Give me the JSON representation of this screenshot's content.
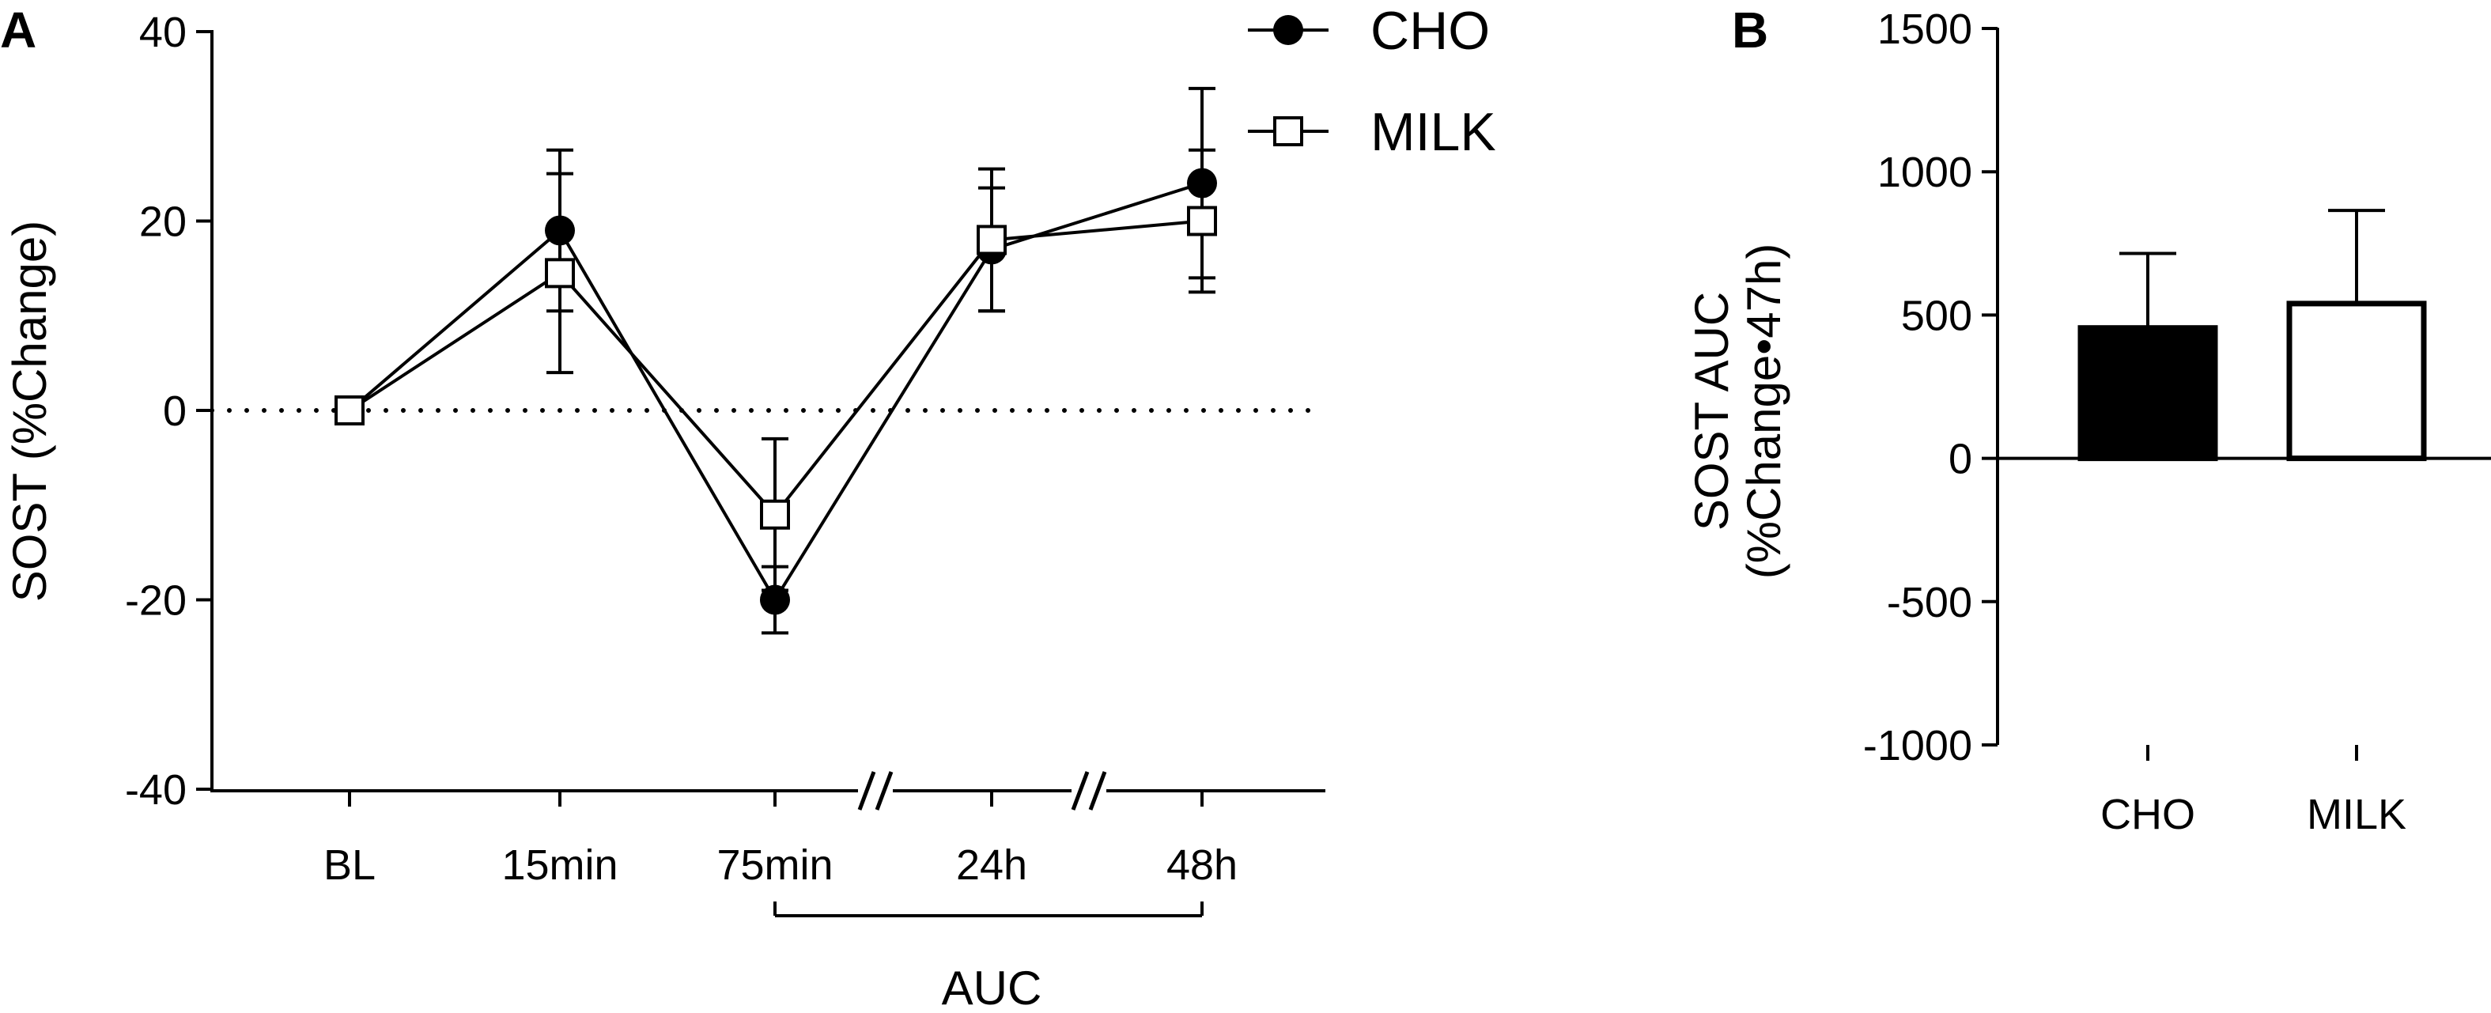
{
  "panels": {
    "a_label": "A",
    "b_label": "B"
  },
  "chart_data": [
    {
      "type": "line",
      "panel": "A",
      "ylabel": "SOST (%Change)",
      "xlabel": "",
      "ylim": [
        -40,
        40
      ],
      "yticks": [
        -40,
        -20,
        0,
        20,
        40
      ],
      "x": [
        "BL",
        "15min",
        "75min",
        "24h",
        "48h"
      ],
      "reference_line": {
        "y": 0,
        "style": "dotted"
      },
      "axis_breaks": [
        "75min-24h",
        "24h-48h"
      ],
      "annotation": {
        "text": "AUC",
        "from": "75min",
        "to": "48h"
      },
      "legend_position": "top-right",
      "series": [
        {
          "name": "CHO",
          "marker": "filled-circle",
          "values": [
            0,
            19,
            -20,
            17,
            24
          ],
          "error": [
            0,
            8.5,
            3.5,
            6.5,
            10
          ]
        },
        {
          "name": "MILK",
          "marker": "open-square",
          "values": [
            0,
            14.5,
            -11,
            18,
            20
          ],
          "error": [
            0,
            10.5,
            8,
            7.5,
            7.5
          ]
        }
      ],
      "grid": false
    },
    {
      "type": "bar",
      "panel": "B",
      "ylabel": "SOST AUC (%Change•47h)",
      "xlabel": "",
      "ylim": [
        -1000,
        1500
      ],
      "yticks": [
        -1000,
        -500,
        0,
        500,
        1000,
        1500
      ],
      "categories": [
        "CHO",
        "MILK"
      ],
      "values": [
        455,
        540
      ],
      "error": [
        260,
        325
      ],
      "fills": [
        "#000000",
        "#ffffff"
      ],
      "grid": false
    }
  ]
}
